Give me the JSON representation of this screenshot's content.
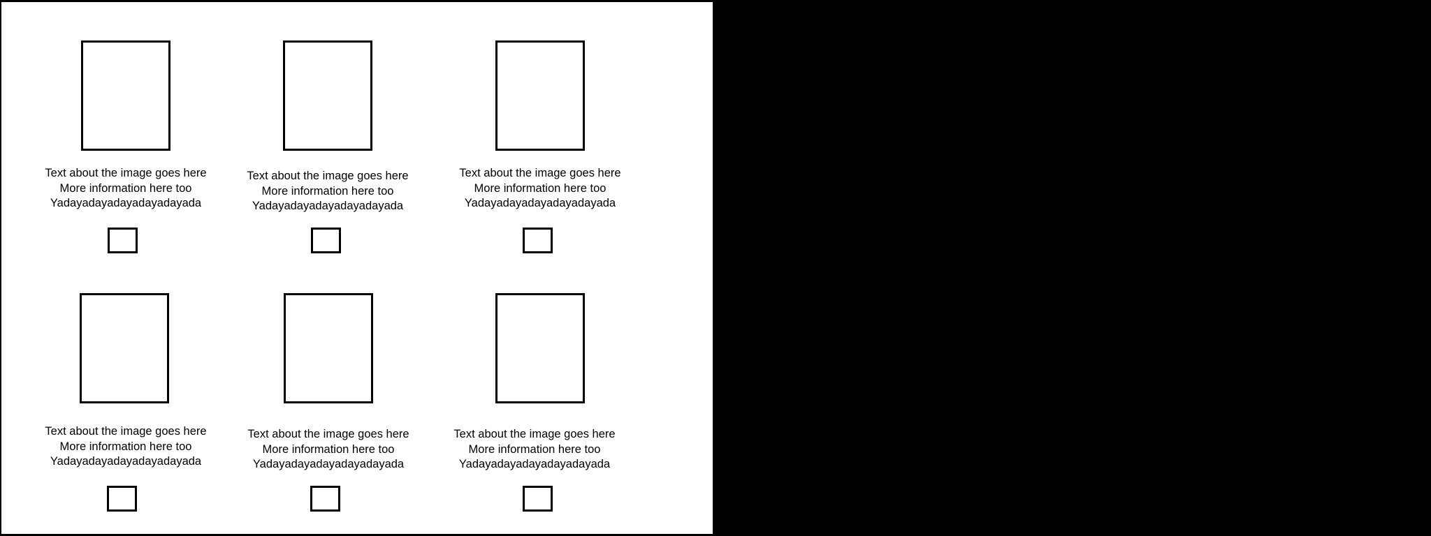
{
  "grid": {
    "cards": [
      {
        "line1": "Text about the image goes here",
        "line2": "More information here too",
        "line3": "Yadayadayadayadayadayada"
      },
      {
        "line1": "Text about the image goes here",
        "line2": "More information here too",
        "line3": "Yadayadayadayadayadayada"
      },
      {
        "line1": "Text about the image goes here",
        "line2": "More information here too",
        "line3": "Yadayadayadayadayadayada"
      },
      {
        "line1": "Text about the image goes here",
        "line2": "More information here too",
        "line3": "Yadayadayadayadayadayada"
      },
      {
        "line1": "Text about the image goes here",
        "line2": "More information here too",
        "line3": "Yadayadayadayadayadayada"
      },
      {
        "line1": "Text about the image goes here",
        "line2": "More information here too",
        "line3": "Yadayadayadayadayadayada"
      }
    ]
  },
  "colors": {
    "panel_background": "#ffffff",
    "page_background": "#000000",
    "border": "#000000",
    "text": "#000000"
  }
}
